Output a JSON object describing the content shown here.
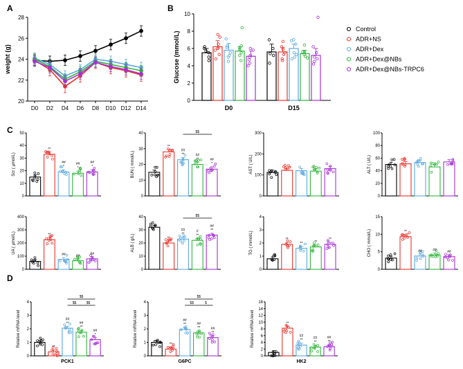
{
  "colors": {
    "Control": "#000000",
    "ADR+NS": "#e8312a",
    "ADR+Dex": "#5aa8e0",
    "ADR+Dex@NBs": "#2fb53a",
    "ADR+Dex@NBs-TRPC6": "#a62fd6"
  },
  "legend": [
    "Control",
    "ADR+NS",
    "ADR+Dex",
    "ADR+Dex@NBs",
    "ADR+Dex@NBs-TRPC6"
  ],
  "chart_data": [
    {
      "id": "A",
      "panel": "A",
      "type": "line",
      "ylabel": "weight (g)",
      "ylim": [
        20,
        28
      ],
      "yticks": [
        20,
        22,
        24,
        26,
        28
      ],
      "categories": [
        "D0",
        "D2",
        "D4",
        "D6",
        "D8",
        "D10",
        "D12",
        "D14"
      ],
      "series": [
        {
          "name": "Control",
          "values": [
            23.9,
            23.8,
            23.9,
            24.3,
            24.8,
            25.4,
            26.0,
            26.7
          ],
          "err": 0.5
        },
        {
          "name": "ADR+NS",
          "values": [
            23.9,
            23.0,
            21.4,
            22.4,
            23.7,
            23.2,
            22.9,
            22.5
          ],
          "err": 0.6
        },
        {
          "name": "ADR+Dex",
          "values": [
            24.1,
            23.5,
            22.4,
            23.0,
            24.0,
            23.8,
            23.5,
            23.2
          ],
          "err": 0.5
        },
        {
          "name": "ADR+Dex@NBs",
          "values": [
            24.0,
            23.3,
            22.1,
            22.8,
            23.8,
            23.5,
            23.2,
            22.9
          ],
          "err": 0.5
        },
        {
          "name": "ADR+Dex@NBs-TRPC6",
          "values": [
            23.8,
            23.2,
            21.9,
            22.6,
            23.7,
            23.3,
            23.0,
            22.6
          ],
          "err": 0.5
        }
      ]
    },
    {
      "id": "B",
      "panel": "B",
      "type": "bar",
      "ylabel": "Glucose (mmol/L)",
      "ylim": [
        0,
        10
      ],
      "yticks": [
        0,
        2,
        4,
        6,
        8,
        10
      ],
      "categories": [
        "D0",
        "D15"
      ],
      "series": [
        {
          "name": "Control",
          "values": [
            5.5,
            5.6
          ],
          "err": [
            0.5,
            0.9
          ],
          "pts": [
            [
              5.0,
              4.6,
              6.0,
              5.7,
              5.5,
              6.2
            ],
            [
              4.3,
              5.2,
              6.0,
              7.0,
              5.4
            ]
          ]
        },
        {
          "name": "ADR+NS",
          "values": [
            6.2,
            5.6
          ],
          "err": [
            0.7,
            0.5
          ],
          "pts": [
            [
              4.8,
              5.3,
              6.5,
              7.3,
              6.0,
              6.1,
              5.8,
              7.6
            ],
            [
              4.8,
              5.3,
              6.2,
              5.9,
              5.5,
              6.8,
              4.6
            ]
          ]
        },
        {
          "name": "ADR+Dex",
          "values": [
            5.8,
            6.0
          ],
          "err": [
            0.8,
            0.5
          ],
          "pts": [
            [
              4.5,
              5.2,
              6.3,
              5.0,
              6.1,
              7.1,
              5.5
            ],
            [
              5.0,
              5.5,
              6.5,
              6.9,
              7.0,
              5.3,
              4.8
            ]
          ]
        },
        {
          "name": "ADR+Dex@NBs",
          "values": [
            5.7,
            5.4
          ],
          "err": [
            0.5,
            0.4
          ],
          "pts": [
            [
              4.6,
              5.2,
              6.3,
              8.4,
              5.5,
              5.9,
              6.1
            ],
            [
              4.9,
              5.3,
              5.6,
              5.1,
              5.6,
              6.4
            ]
          ]
        },
        {
          "name": "ADR+Dex@NBs-TRPC6",
          "values": [
            5.1,
            5.2
          ],
          "err": [
            0.6,
            0.8
          ],
          "pts": [
            [
              4.0,
              4.3,
              5.0,
              6.0,
              5.2,
              5.8,
              4.7
            ],
            [
              4.5,
              5.0,
              6.2,
              4.2,
              4.8,
              9.6,
              5.5
            ]
          ]
        }
      ]
    },
    {
      "id": "C1",
      "panel": "C",
      "type": "bar",
      "ylabel": "Scr ( μmol/L)",
      "ylim": [
        0,
        50
      ],
      "yticks": [
        0,
        10,
        20,
        30,
        40,
        50
      ],
      "values": [
        15,
        33,
        19,
        18,
        19
      ],
      "sig": [
        "",
        "**",
        "## *",
        "## *",
        "## *"
      ],
      "bracket": ""
    },
    {
      "id": "C2",
      "type": "bar",
      "ylabel": "BUN ( mmol/L)",
      "ylim": [
        0,
        40
      ],
      "yticks": [
        0,
        10,
        20,
        30,
        40
      ],
      "values": [
        15,
        28,
        23,
        20,
        17
      ],
      "sig": [
        "",
        "**",
        "## **",
        "## **",
        "## *"
      ],
      "bracket": "$$"
    },
    {
      "id": "C3",
      "type": "bar",
      "ylabel": "AST ( U/L)",
      "ylim": [
        0,
        300
      ],
      "yticks": [
        0,
        100,
        200,
        300
      ],
      "values": [
        112,
        122,
        120,
        118,
        130
      ],
      "sig": [
        "",
        "",
        "",
        "",
        ""
      ],
      "bracket": ""
    },
    {
      "id": "C4",
      "type": "bar",
      "ylabel": "ALT ( U/L)",
      "ylim": [
        0,
        100
      ],
      "yticks": [
        0,
        20,
        40,
        60,
        80,
        100
      ],
      "values": [
        50,
        51,
        53,
        46,
        54
      ],
      "sig": [
        "",
        "",
        "",
        "",
        ""
      ],
      "bracket": ""
    },
    {
      "id": "C5",
      "type": "bar",
      "ylabel": "UA ( μmol/L)",
      "ylim": [
        0,
        400
      ],
      "yticks": [
        0,
        100,
        200,
        300,
        400
      ],
      "values": [
        60,
        225,
        75,
        65,
        80
      ],
      "sig": [
        "",
        "**",
        "##",
        "##",
        "##"
      ],
      "bracket": ""
    },
    {
      "id": "C6",
      "type": "bar",
      "ylabel": "ALB ( g/L)",
      "ylim": [
        0,
        40
      ],
      "yticks": [
        0,
        10,
        20,
        30,
        40
      ],
      "values": [
        32,
        20,
        23,
        22,
        26
      ],
      "sig": [
        "",
        "**",
        "## **",
        "# **",
        "## **"
      ],
      "bracket": "$$"
    },
    {
      "id": "C7",
      "type": "bar",
      "ylabel": "TG ( mmol/L)",
      "ylim": [
        0,
        4
      ],
      "yticks": [
        0,
        1,
        2,
        3,
        4
      ],
      "values": [
        0.8,
        1.9,
        1.6,
        1.7,
        1.9
      ],
      "sig": [
        "",
        "**",
        "**",
        "**",
        "**"
      ],
      "bracket": ""
    },
    {
      "id": "C8",
      "type": "bar",
      "ylabel": "CHO ( mmol/L)",
      "ylim": [
        0,
        15
      ],
      "yticks": [
        0,
        5,
        10,
        15
      ],
      "values": [
        3.2,
        9.3,
        3.8,
        4.1,
        3.6
      ],
      "sig": [
        "",
        "**",
        "##",
        "##",
        "##"
      ],
      "bracket": ""
    },
    {
      "id": "D1",
      "panel": "D",
      "type": "bar",
      "xlabel": "PCK1",
      "ylabel": "Relative mRNA level",
      "ylim": [
        0,
        4
      ],
      "yticks": [
        0,
        1,
        2,
        3,
        4
      ],
      "values": [
        1.0,
        0.3,
        2.05,
        1.75,
        1.2
      ],
      "sig": [
        "",
        "**",
        "## **",
        "## **",
        "## *"
      ],
      "bracket": "$$ $$ $$"
    },
    {
      "id": "D2",
      "type": "bar",
      "xlabel": "G6PC",
      "ylabel": "Relative mRNA level",
      "ylim": [
        0,
        4
      ],
      "yticks": [
        0,
        1,
        2,
        3,
        4
      ],
      "values": [
        1.0,
        0.5,
        1.95,
        1.7,
        1.35
      ],
      "sig": [
        "",
        "**",
        "## **",
        "## **",
        "## **"
      ],
      "bracket": "$$ $$ $"
    },
    {
      "id": "D3",
      "type": "bar",
      "xlabel": "HK2",
      "ylabel": "Relative mRNA level",
      "ylim": [
        0,
        16
      ],
      "yticks": [
        0,
        2,
        4,
        6,
        8,
        10,
        12,
        14,
        16
      ],
      "values": [
        1.0,
        8.2,
        3.2,
        2.6,
        2.7
      ],
      "sig": [
        "",
        "**",
        "## **",
        "## **",
        "## **"
      ],
      "bracket": ""
    }
  ]
}
